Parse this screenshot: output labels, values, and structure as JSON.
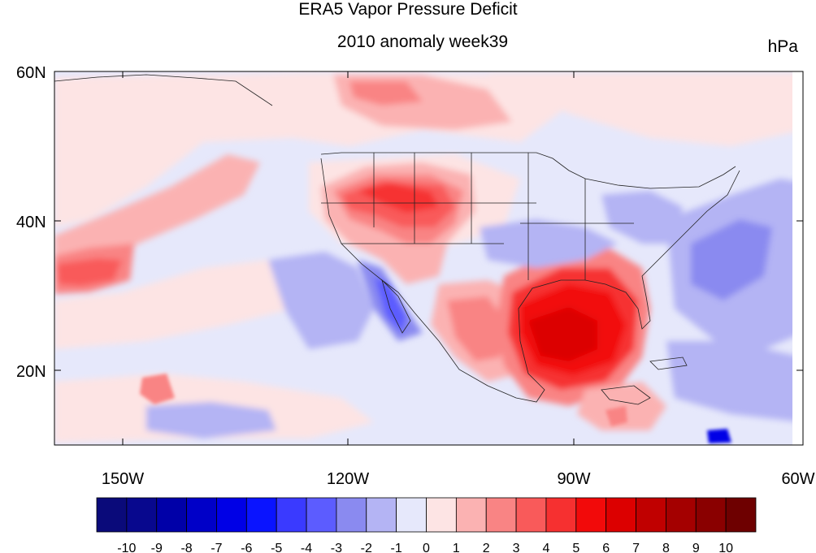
{
  "title": "ERA5 Vapor Pressure Deficit",
  "subtitle": "2010 anomaly week39",
  "units": "hPa",
  "map": {
    "lon_range": [
      -160,
      -60
    ],
    "lat_range": [
      10,
      60
    ],
    "lat_ticks": [
      "60N",
      "40N",
      "20N"
    ],
    "lon_ticks": [
      "150W",
      "120W",
      "90W",
      "60W"
    ]
  },
  "colorbar": {
    "labels": [
      "-10",
      "-9",
      "-8",
      "-7",
      "-6",
      "-5",
      "-4",
      "-3",
      "-2",
      "-1",
      "0",
      "1",
      "2",
      "3",
      "4",
      "5",
      "6",
      "7",
      "8",
      "9",
      "10"
    ],
    "colors": [
      "#0a0a7a",
      "#08088e",
      "#0000a8",
      "#0000c8",
      "#0000e6",
      "#0a14ff",
      "#3a3aff",
      "#5c5cff",
      "#8a8af0",
      "#b4b4f4",
      "#e6e8fb",
      "#fde4e4",
      "#fbb2b2",
      "#f98484",
      "#f95a5a",
      "#f63030",
      "#f20a0a",
      "#dc0000",
      "#c00000",
      "#a40000",
      "#8a0000",
      "#6e0000"
    ]
  }
}
